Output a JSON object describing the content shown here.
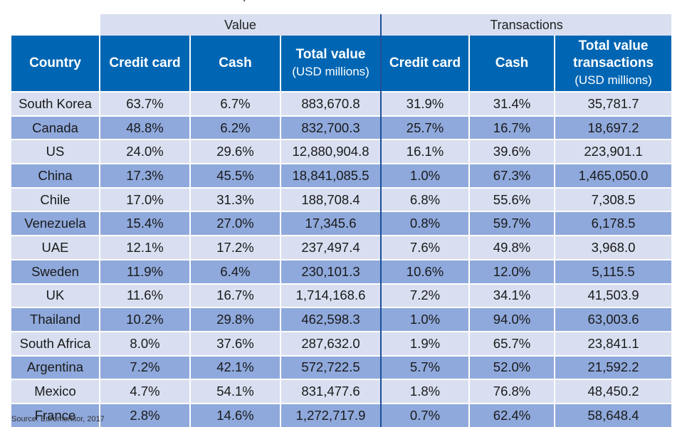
{
  "table": {
    "group_headers": {
      "value": "Value",
      "transactions": "Transactions"
    },
    "columns": {
      "country": "Country",
      "v_credit": "Credit card",
      "v_cash": "Cash",
      "v_total": "Total value",
      "v_total_unit": "(USD millions)",
      "t_credit": "Credit card",
      "t_cash": "Cash",
      "t_total": "Total value transactions",
      "t_total_unit": "(USD millions)"
    },
    "rows": [
      [
        "South Korea",
        "63.7%",
        "6.7%",
        "883,670.8",
        "31.9%",
        "31.4%",
        "35,781.7"
      ],
      [
        "Canada",
        "48.8%",
        "6.2%",
        "832,700.3",
        "25.7%",
        "16.7%",
        "18,697.2"
      ],
      [
        "US",
        "24.0%",
        "29.6%",
        "12,880,904.8",
        "16.1%",
        "39.6%",
        "223,901.1"
      ],
      [
        "China",
        "17.3%",
        "45.5%",
        "18,841,085.5",
        "1.0%",
        "67.3%",
        "1,465,050.0"
      ],
      [
        "Chile",
        "17.0%",
        "31.3%",
        "188,708.4",
        "6.8%",
        "55.6%",
        "7,308.5"
      ],
      [
        "Venezuela",
        "15.4%",
        "27.0%",
        "17,345.6",
        "0.8%",
        "59.7%",
        "6,178.5"
      ],
      [
        "UAE",
        "12.1%",
        "17.2%",
        "237,497.4",
        "7.6%",
        "49.8%",
        "3,968.0"
      ],
      [
        "Sweden",
        "11.9%",
        "6.4%",
        "230,101.3",
        "10.6%",
        "12.0%",
        "5,115.5"
      ],
      [
        "UK",
        "11.6%",
        "16.7%",
        "1,714,168.6",
        "7.2%",
        "34.1%",
        "41,503.9"
      ],
      [
        "Thailand",
        "10.2%",
        "29.8%",
        "462,598.3",
        "1.0%",
        "94.0%",
        "63,003.6"
      ],
      [
        "South Africa",
        "8.0%",
        "37.6%",
        "287,632.0",
        "1.9%",
        "65.7%",
        "23,841.1"
      ],
      [
        "Argentina",
        "7.2%",
        "42.1%",
        "572,722.5",
        "5.7%",
        "52.0%",
        "21,592.2"
      ],
      [
        "Mexico",
        "4.7%",
        "54.1%",
        "831,477.6",
        "1.8%",
        "76.8%",
        "48,450.2"
      ],
      [
        "France",
        "2.8%",
        "14.6%",
        "1,272,717.9",
        "0.7%",
        "62.4%",
        "58,648.4"
      ]
    ]
  },
  "source": "Source: Euromonitor, 2017"
}
